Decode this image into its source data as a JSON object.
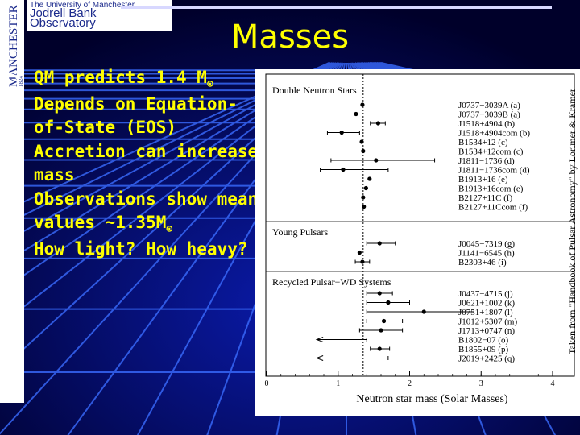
{
  "logo": {
    "vertical_text": "MANCHESTER",
    "year": "1824",
    "university_line": "The University of Manchester",
    "observatory_line1": "Jodrell Bank",
    "observatory_line2": "Observatory"
  },
  "slide": {
    "title": "Masses",
    "bullets": [
      {
        "text": "QM predicts 1.4 M",
        "sun": true
      },
      {
        "text": "Depends on Equation-of-State (EOS)",
        "sun": false
      },
      {
        "text": "Accretion can increase mass",
        "sun": false
      },
      {
        "text": "Observations show mean values ~1.35M",
        "sun": true
      },
      {
        "text": "How light? How heavy?",
        "sun": false
      }
    ],
    "sun_symbol": "⊙"
  },
  "credit": "Taken from \"Handbook of Pulsar Astronomy\" by Lorimer & Kramer",
  "chart_data": {
    "type": "scatter",
    "xlabel": "Neutron star mass (Solar Masses)",
    "xlim": [
      0,
      4
    ],
    "xticks": [
      0,
      1,
      2,
      3,
      4
    ],
    "reference_line": 1.35,
    "groups": [
      {
        "name": "Double Neutron Stars",
        "points": [
          {
            "label": "J0737−3039A (a)",
            "x": 1.34,
            "lo": 1.34,
            "hi": 1.34
          },
          {
            "label": "J0737−3039B (a)",
            "x": 1.25,
            "lo": 1.25,
            "hi": 1.25
          },
          {
            "label": "J1518+4904 (b)",
            "x": 1.56,
            "lo": 1.45,
            "hi": 1.66
          },
          {
            "label": "J1518+4904com (b)",
            "x": 1.05,
            "lo": 0.85,
            "hi": 1.3
          },
          {
            "label": "B1534+12 (c)",
            "x": 1.33,
            "lo": 1.33,
            "hi": 1.33
          },
          {
            "label": "B1534+12com (c)",
            "x": 1.35,
            "lo": 1.35,
            "hi": 1.35
          },
          {
            "label": "J1811−1736 (d)",
            "x": 1.53,
            "lo": 0.9,
            "hi": 2.35
          },
          {
            "label": "J1811−1736com (d)",
            "x": 1.07,
            "lo": 0.75,
            "hi": 1.7
          },
          {
            "label": "B1913+16 (e)",
            "x": 1.44,
            "lo": 1.44,
            "hi": 1.44
          },
          {
            "label": "B1913+16com (e)",
            "x": 1.39,
            "lo": 1.39,
            "hi": 1.39
          },
          {
            "label": "B2127+11C (f)",
            "x": 1.35,
            "lo": 1.35,
            "hi": 1.35
          },
          {
            "label": "B2127+11Ccom (f)",
            "x": 1.36,
            "lo": 1.36,
            "hi": 1.36
          }
        ]
      },
      {
        "name": "Young Pulsars",
        "points": [
          {
            "label": "J0045−7319 (g)",
            "x": 1.58,
            "lo": 1.4,
            "hi": 1.8
          },
          {
            "label": "J1141−6545 (h)",
            "x": 1.3,
            "lo": 1.3,
            "hi": 1.3
          },
          {
            "label": "B2303+46 (i)",
            "x": 1.34,
            "lo": 1.24,
            "hi": 1.44
          }
        ]
      },
      {
        "name": "Recycled Pulsar−WD Systems",
        "points": [
          {
            "label": "J0437−4715 (j)",
            "x": 1.58,
            "lo": 1.4,
            "hi": 1.76
          },
          {
            "label": "J0621+1002 (k)",
            "x": 1.7,
            "lo": 1.4,
            "hi": 2.0
          },
          {
            "label": "J0751+1807 (l)",
            "x": 2.2,
            "lo": 1.4,
            "hi": 2.9
          },
          {
            "label": "J1012+5307 (m)",
            "x": 1.64,
            "lo": 1.4,
            "hi": 1.9
          },
          {
            "label": "J1713+0747 (n)",
            "x": 1.6,
            "lo": 1.3,
            "hi": 1.9
          },
          {
            "label": "B1802−07 (o)",
            "x": 1.4,
            "lo": 0.7,
            "hi": 1.4,
            "upper_limit": true
          },
          {
            "label": "B1855+09 (p)",
            "x": 1.58,
            "lo": 1.45,
            "hi": 1.72
          },
          {
            "label": "J2019+2425 (q)",
            "x": 1.4,
            "lo": 0.7,
            "hi": 1.7,
            "upper_limit": true
          }
        ]
      }
    ]
  }
}
